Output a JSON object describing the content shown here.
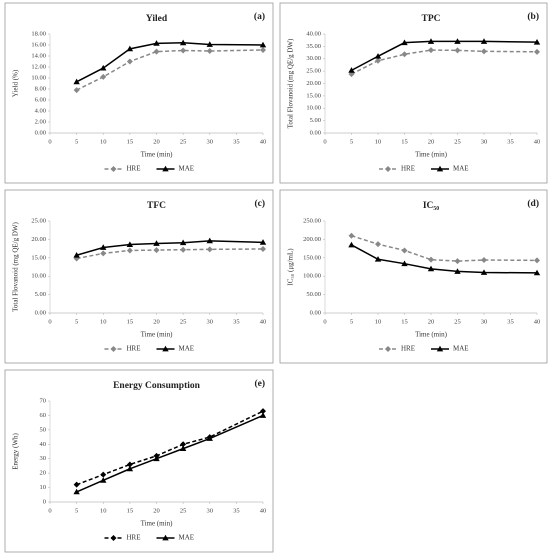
{
  "chart_data": [
    {
      "type": "line",
      "title": "Yiled",
      "label": "(a)",
      "x_label": "Time (min)",
      "y_label": "Yield (%)",
      "x": [
        5,
        10,
        15,
        20,
        25,
        30,
        40
      ],
      "xlim": [
        0,
        40
      ],
      "xticks": [
        0,
        5,
        10,
        15,
        20,
        25,
        30,
        35,
        40
      ],
      "ylim": [
        0,
        18
      ],
      "yticks": [
        {
          "value": 0,
          "label": "0.00"
        },
        {
          "value": 2,
          "label": "2.00"
        },
        {
          "value": 4,
          "label": "4.00"
        },
        {
          "value": 6,
          "label": "6.00"
        },
        {
          "value": 8,
          "label": "8.00"
        },
        {
          "value": 10,
          "label": "10.00"
        },
        {
          "value": 12,
          "label": "12.00"
        },
        {
          "value": 14,
          "label": "14.00"
        },
        {
          "value": 16,
          "label": "16.00"
        },
        {
          "value": 18,
          "label": "18.00"
        }
      ],
      "series": [
        {
          "name": "HRE",
          "color": "#888888",
          "style": "dashed",
          "marker": "diamond",
          "values": [
            7.8,
            10.2,
            13.0,
            14.8,
            15.0,
            14.9,
            15.1
          ]
        },
        {
          "name": "MAE",
          "color": "#000000",
          "style": "solid",
          "marker": "triangle",
          "values": [
            9.3,
            11.8,
            15.3,
            16.3,
            16.4,
            16.1,
            16.0
          ]
        }
      ]
    },
    {
      "type": "line",
      "title": "TPC",
      "label": "(b)",
      "x_label": "Time (min)",
      "y_label": "Total Flovanoid (mg QE/g DW)",
      "x": [
        5,
        10,
        15,
        20,
        25,
        30,
        40
      ],
      "xlim": [
        0,
        40
      ],
      "xticks": [
        0,
        5,
        10,
        15,
        20,
        25,
        30,
        35,
        40
      ],
      "ylim": [
        0,
        40
      ],
      "yticks": [
        {
          "value": 0,
          "label": "0.00"
        },
        {
          "value": 5,
          "label": "5.00"
        },
        {
          "value": 10,
          "label": "10.00"
        },
        {
          "value": 15,
          "label": "15.00"
        },
        {
          "value": 20,
          "label": "20.00"
        },
        {
          "value": 25,
          "label": "25.00"
        },
        {
          "value": 30,
          "label": "30.00"
        },
        {
          "value": 35,
          "label": "35.00"
        },
        {
          "value": 40,
          "label": "40.00"
        }
      ],
      "series": [
        {
          "name": "HRE",
          "color": "#888888",
          "style": "dashed",
          "marker": "diamond",
          "values": [
            23.8,
            29.2,
            31.8,
            33.5,
            33.4,
            33.0,
            32.8
          ]
        },
        {
          "name": "MAE",
          "color": "#000000",
          "style": "solid",
          "marker": "triangle",
          "values": [
            25.3,
            31.0,
            36.5,
            37.0,
            37.0,
            37.0,
            36.7
          ]
        }
      ]
    },
    {
      "type": "line",
      "title": "TFC",
      "label": "(c)",
      "x_label": "Time (min)",
      "y_label": "Total Flovanoid (mg QE/g DW)",
      "x": [
        5,
        10,
        15,
        20,
        25,
        30,
        40
      ],
      "xlim": [
        0,
        40
      ],
      "xticks": [
        0,
        5,
        10,
        15,
        20,
        25,
        30,
        35,
        40
      ],
      "ylim": [
        0,
        25
      ],
      "yticks": [
        {
          "value": 0,
          "label": "0.00"
        },
        {
          "value": 5,
          "label": "5.00"
        },
        {
          "value": 10,
          "label": "10.00"
        },
        {
          "value": 15,
          "label": "15.00"
        },
        {
          "value": 20,
          "label": "20.00"
        },
        {
          "value": 25,
          "label": "25.00"
        }
      ],
      "series": [
        {
          "name": "HRE",
          "color": "#888888",
          "style": "dashed",
          "marker": "diamond",
          "values": [
            14.8,
            16.2,
            17.0,
            17.1,
            17.2,
            17.3,
            17.4
          ]
        },
        {
          "name": "MAE",
          "color": "#000000",
          "style": "solid",
          "marker": "triangle",
          "values": [
            15.7,
            17.8,
            18.6,
            18.9,
            19.1,
            19.6,
            19.2
          ]
        }
      ]
    },
    {
      "type": "line",
      "title": "IC₅₀",
      "label": "(d)",
      "x_label": "Time (min)",
      "y_label": "IC₅₀ (μg/mL)",
      "x": [
        5,
        10,
        15,
        20,
        25,
        30,
        40
      ],
      "xlim": [
        0,
        40
      ],
      "xticks": [
        0,
        5,
        10,
        15,
        20,
        25,
        30,
        35,
        40
      ],
      "ylim": [
        0,
        250
      ],
      "yticks": [
        {
          "value": 0,
          "label": "0.00"
        },
        {
          "value": 50,
          "label": "50.00"
        },
        {
          "value": 100,
          "label": "100.00"
        },
        {
          "value": 150,
          "label": "150.00"
        },
        {
          "value": 200,
          "label": "200.00"
        },
        {
          "value": 250,
          "label": "250.00"
        }
      ],
      "series": [
        {
          "name": "HRE",
          "color": "#888888",
          "style": "dashed",
          "marker": "diamond",
          "values": [
            210,
            187,
            170,
            145,
            141,
            144,
            143
          ]
        },
        {
          "name": "MAE",
          "color": "#000000",
          "style": "solid",
          "marker": "triangle",
          "values": [
            185,
            146,
            134,
            120,
            113,
            110,
            109
          ]
        }
      ]
    },
    {
      "type": "line",
      "title": "Energy Consumption",
      "label": "(e)",
      "x_label": "Time (min)",
      "y_label": "Energy (Wh)",
      "x": [
        5,
        10,
        15,
        20,
        25,
        30,
        40
      ],
      "xlim": [
        0,
        40
      ],
      "xticks": [
        0,
        5,
        10,
        15,
        20,
        25,
        30,
        35,
        40
      ],
      "ylim": [
        0,
        70
      ],
      "yticks": [
        0,
        10,
        20,
        30,
        40,
        50,
        60,
        70
      ],
      "series": [
        {
          "name": "HRE",
          "color": "#000000",
          "style": "dashed",
          "marker": "diamond",
          "values": [
            12,
            19,
            26,
            32,
            40,
            45,
            63
          ]
        },
        {
          "name": "MAE",
          "color": "#000000",
          "style": "solid",
          "marker": "triangle",
          "values": [
            7,
            15,
            23,
            30,
            37,
            44,
            60
          ]
        }
      ]
    }
  ]
}
